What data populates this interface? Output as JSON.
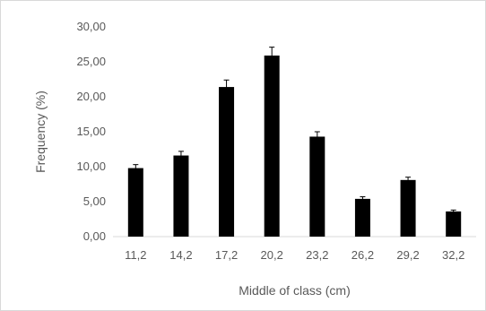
{
  "chart_data": {
    "type": "bar",
    "title": "",
    "xlabel": "Middle of class (cm)",
    "ylabel": "Frequency (%)",
    "categories": [
      "11,2",
      "14,2",
      "17,2",
      "20,2",
      "23,2",
      "26,2",
      "29,2",
      "32,2"
    ],
    "values": [
      9.8,
      11.6,
      21.4,
      25.9,
      14.3,
      5.4,
      8.1,
      3.6
    ],
    "error": [
      0.5,
      0.6,
      1.0,
      1.2,
      0.7,
      0.3,
      0.4,
      0.2
    ],
    "ylim": [
      0,
      30
    ],
    "yticks": [
      "0,00",
      "5,00",
      "10,00",
      "15,00",
      "20,00",
      "25,00",
      "30,00"
    ],
    "grid": false,
    "bar_color": "#000000",
    "axis_color": "#d9d9d9",
    "text_color": "#595959"
  }
}
